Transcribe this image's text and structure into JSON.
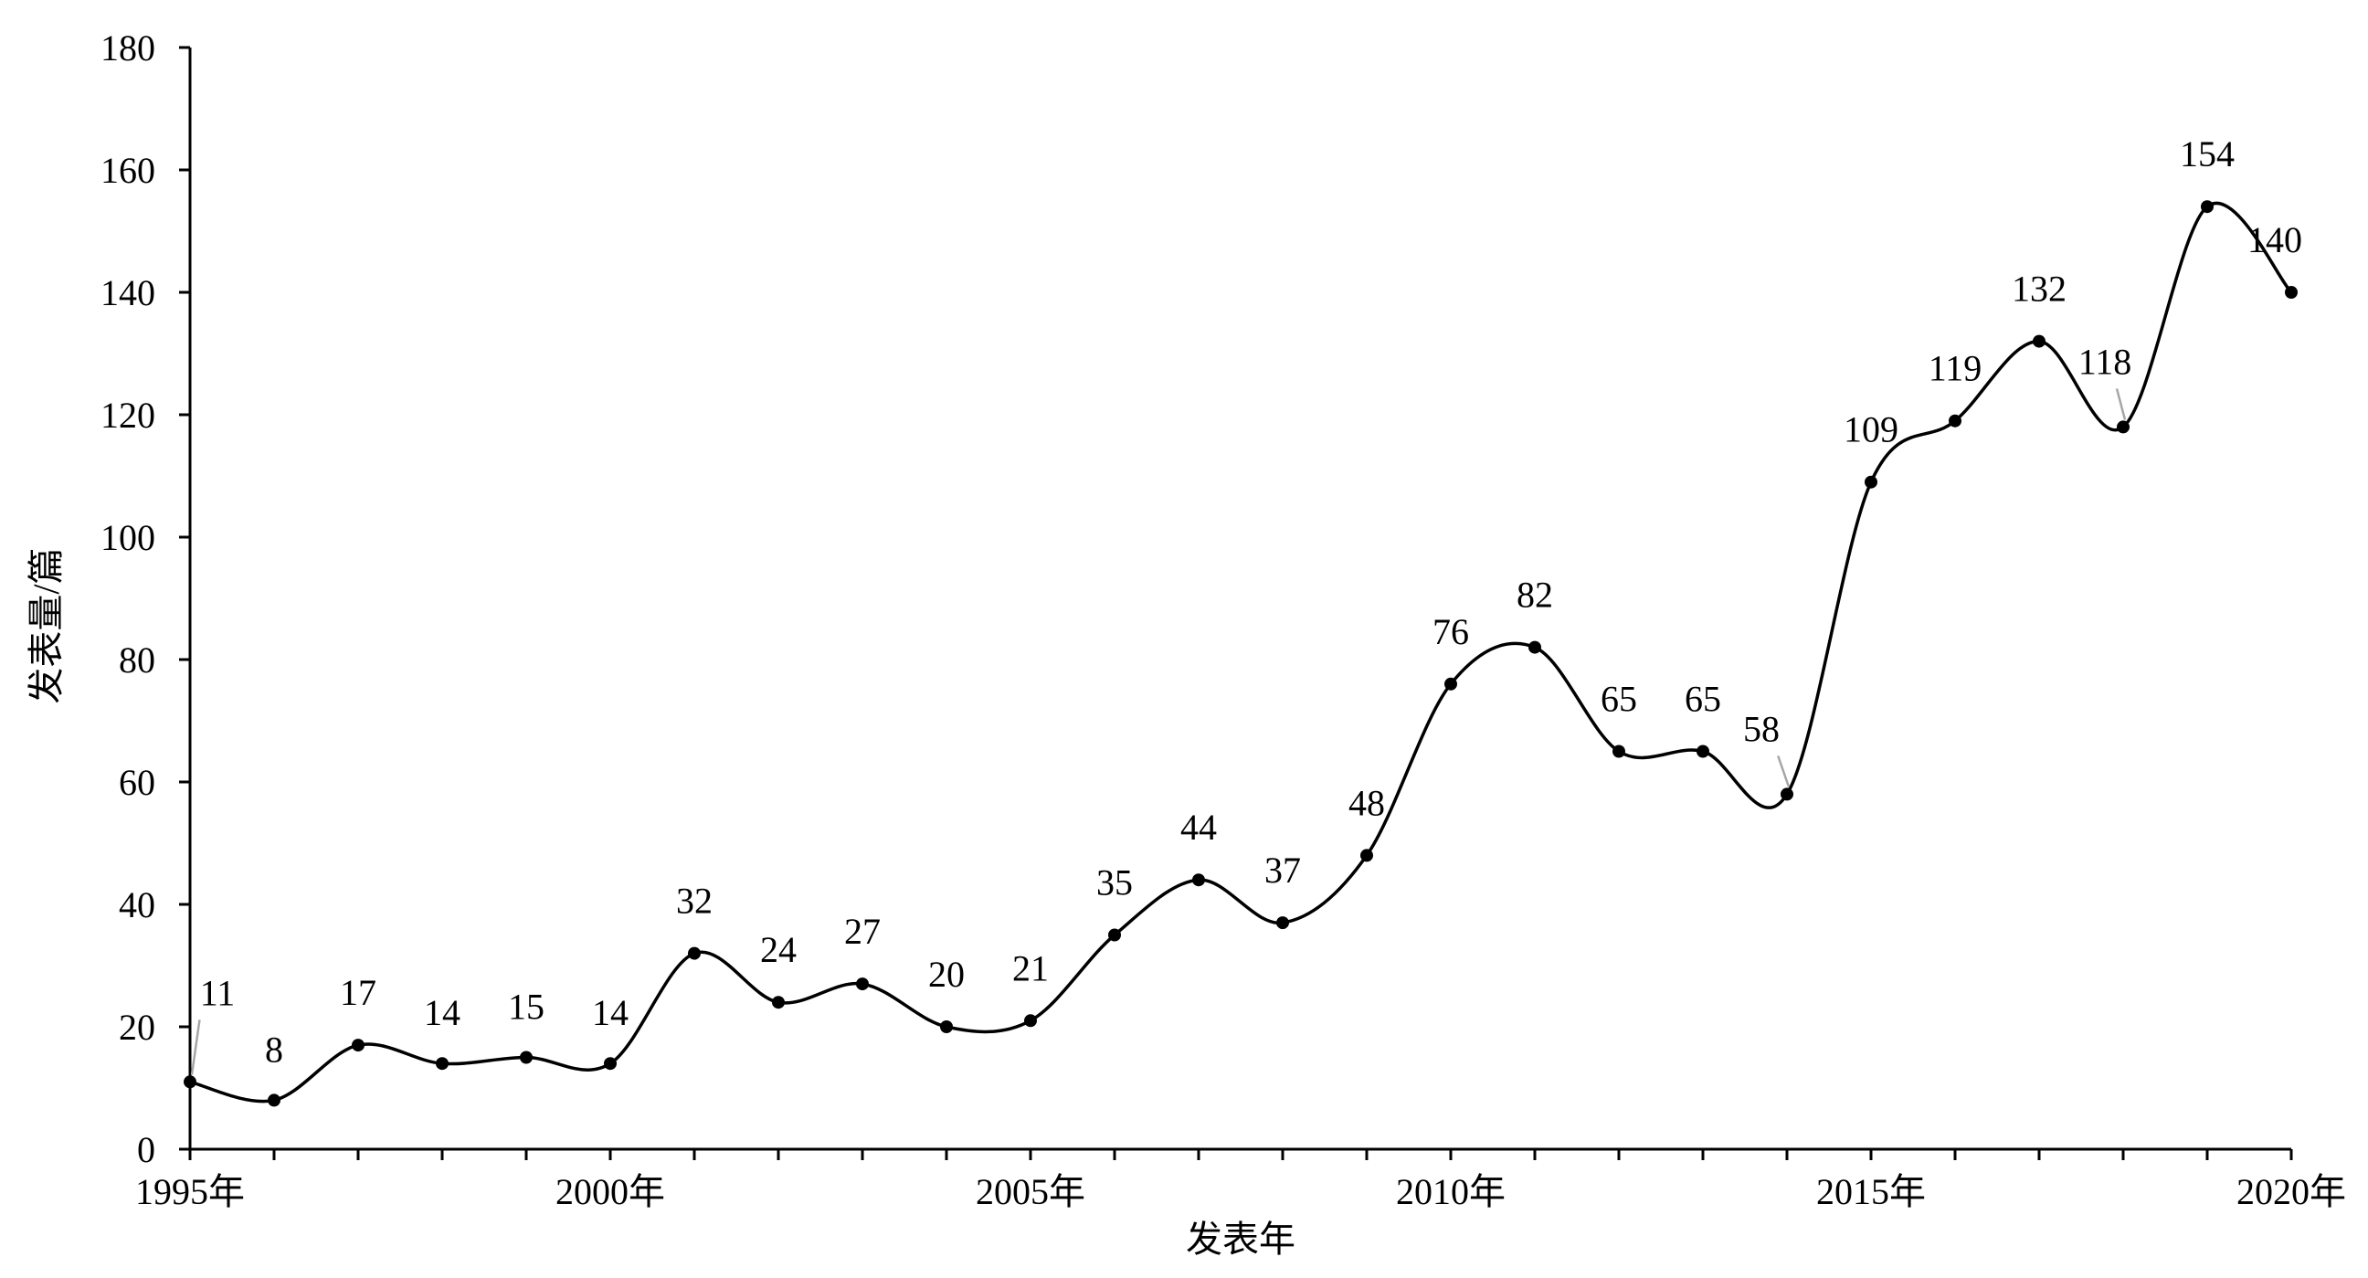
{
  "chart_data": {
    "type": "line",
    "title": "",
    "xlabel": "发表年",
    "ylabel": "发表量/篇",
    "ylim": [
      0,
      180
    ],
    "yticks": [
      0,
      20,
      40,
      60,
      80,
      100,
      120,
      140,
      160,
      180
    ],
    "xtick_labels": [
      {
        "x": 1995,
        "label": "1995年"
      },
      {
        "x": 2000,
        "label": "2000年"
      },
      {
        "x": 2005,
        "label": "2005年"
      },
      {
        "x": 2010,
        "label": "2010年"
      },
      {
        "x": 2015,
        "label": "2015年"
      },
      {
        "x": 2020,
        "label": "2020年"
      }
    ],
    "x": [
      1995,
      1996,
      1997,
      1998,
      1999,
      2000,
      2001,
      2002,
      2003,
      2004,
      2005,
      2006,
      2007,
      2008,
      2009,
      2010,
      2011,
      2012,
      2013,
      2014,
      2015,
      2016,
      2017,
      2018,
      2019,
      2020
    ],
    "series": [
      {
        "values": [
          11,
          8,
          17,
          14,
          15,
          14,
          32,
          24,
          27,
          20,
          21,
          35,
          44,
          37,
          48,
          76,
          82,
          65,
          65,
          58,
          109,
          119,
          132,
          118,
          154,
          140
        ]
      }
    ],
    "smooth": true,
    "grid": false,
    "legend": "none",
    "line_color": "#000000",
    "leader_line_color": "#a6a6a6"
  }
}
